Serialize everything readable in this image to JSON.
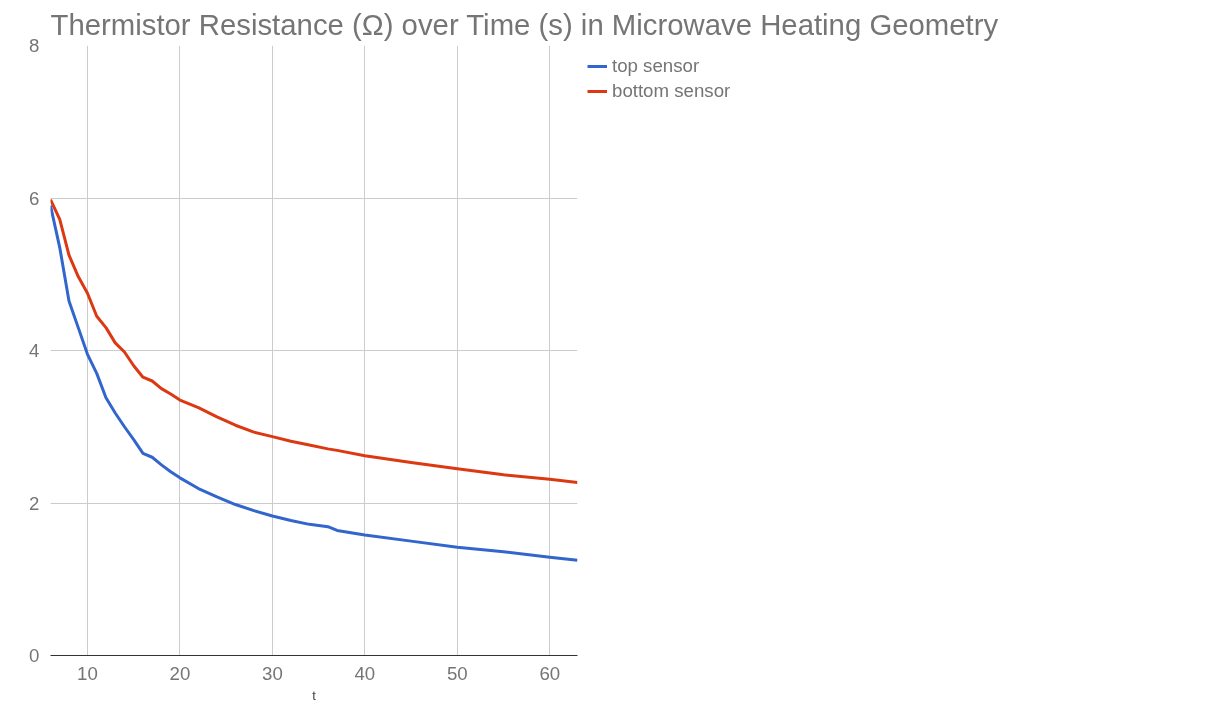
{
  "chart_data": {
    "type": "line",
    "title": "Thermistor Resistance (Ω) over Time (s) in Microwave Heating Geometry",
    "xlabel": "t",
    "x": [
      6,
      7,
      8,
      9,
      10,
      11,
      12,
      13,
      14,
      15,
      16,
      17,
      18,
      19,
      20,
      22,
      24,
      26,
      28,
      30,
      32,
      34,
      36,
      37,
      40,
      45,
      50,
      55,
      60,
      63
    ],
    "series": [
      {
        "name": "top sensor",
        "color": "#3366cc",
        "values": [
          5.9,
          5.35,
          4.65,
          4.3,
          3.95,
          3.7,
          3.38,
          3.18,
          3.0,
          2.83,
          2.65,
          2.6,
          2.5,
          2.41,
          2.33,
          2.19,
          2.08,
          1.98,
          1.9,
          1.83,
          1.77,
          1.72,
          1.69,
          1.64,
          1.58,
          1.5,
          1.42,
          1.36,
          1.29,
          1.25
        ]
      },
      {
        "name": "bottom sensor",
        "color": "#dc3912",
        "values": [
          5.98,
          5.72,
          5.25,
          4.97,
          4.75,
          4.45,
          4.3,
          4.1,
          3.98,
          3.8,
          3.65,
          3.6,
          3.5,
          3.43,
          3.35,
          3.25,
          3.13,
          3.02,
          2.93,
          2.87,
          2.81,
          2.76,
          2.71,
          2.69,
          2.62,
          2.53,
          2.45,
          2.37,
          2.31,
          2.27
        ]
      }
    ],
    "xlim": [
      6,
      63
    ],
    "xticks": [
      10,
      20,
      30,
      40,
      50,
      60
    ],
    "ylim": [
      0,
      8
    ],
    "yticks": [
      0,
      2,
      4,
      6,
      8
    ],
    "grid": true,
    "legend": "top right",
    "marker": "none",
    "line_style": "solid"
  }
}
